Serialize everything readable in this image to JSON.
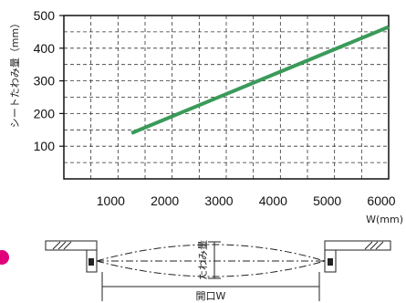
{
  "chart_data": {
    "type": "line",
    "title": "",
    "xlabel": "W(mm)",
    "ylabel": "シートたわみ量（mm）",
    "x_ticks": [
      1000,
      2000,
      3000,
      4000,
      5000,
      6000
    ],
    "y_ticks": [
      100,
      200,
      300,
      400,
      500
    ],
    "xlim": [
      0,
      6000
    ],
    "ylim": [
      0,
      500
    ],
    "grid": true,
    "series": [
      {
        "color": "#3a9a5a",
        "x": [
          1250,
          6000
        ],
        "y": [
          140,
          465
        ]
      }
    ]
  },
  "diagram": {
    "opening_label": "開口W",
    "sag_label": "たわみ量",
    "marker_color": "#e0007a"
  }
}
